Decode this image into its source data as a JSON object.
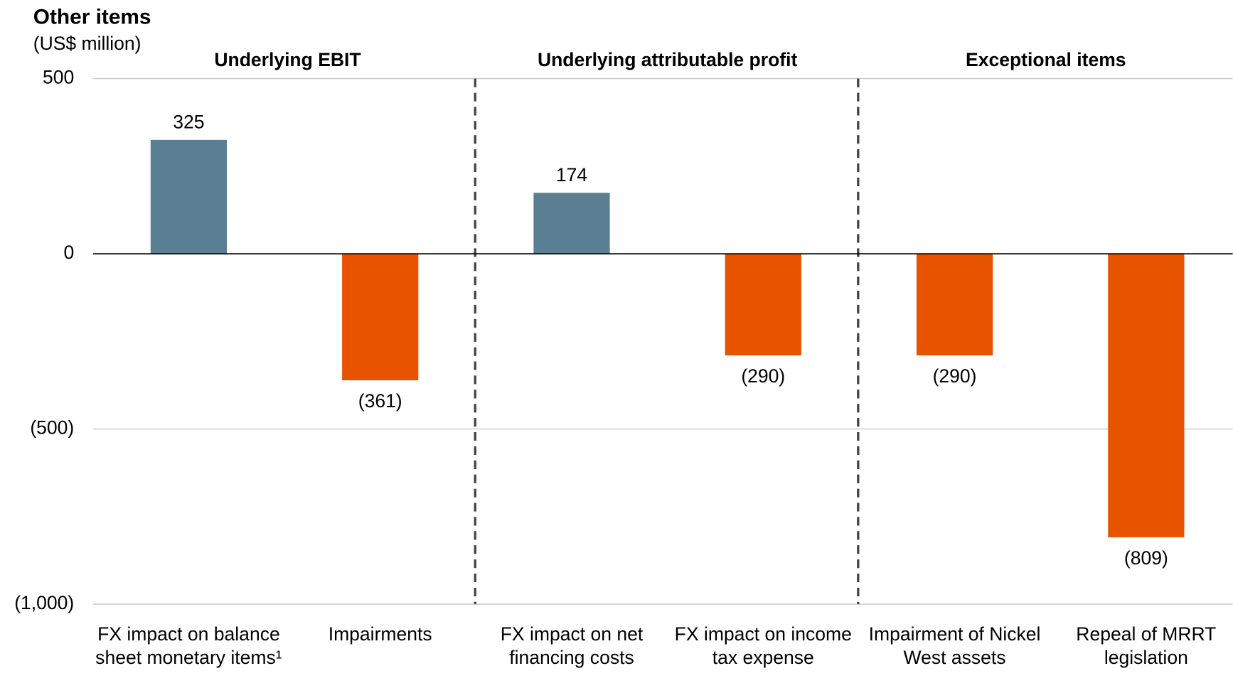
{
  "chart_data": {
    "type": "bar",
    "title": "Other items",
    "subtitle": "(US$ million)",
    "groups": [
      {
        "label": "Underlying EBIT",
        "size": 2
      },
      {
        "label": "Underlying attributable profit",
        "size": 2
      },
      {
        "label": "Exceptional items",
        "size": 2
      }
    ],
    "categories": [
      "FX impact on balance sheet monetary items¹",
      "Impairments",
      "FX impact on net financing costs",
      "FX impact on income tax expense",
      "Impairment of Nickel West assets",
      "Repeal of MRRT legislation"
    ],
    "values": [
      325,
      -361,
      174,
      -290,
      -290,
      -809
    ],
    "value_labels": [
      "325",
      "(361)",
      "174",
      "(290)",
      "(290)",
      "(809)"
    ],
    "colors": [
      "#5b7f92",
      "#e85300",
      "#5b7f92",
      "#e85300",
      "#e85300",
      "#e85300"
    ],
    "ylim": [
      -1000,
      500
    ],
    "yticks": [
      500,
      0,
      {
        "value": -500,
        "label": "(500)"
      },
      {
        "value": -1000,
        "label": "(1,000)"
      }
    ],
    "grid": true
  }
}
